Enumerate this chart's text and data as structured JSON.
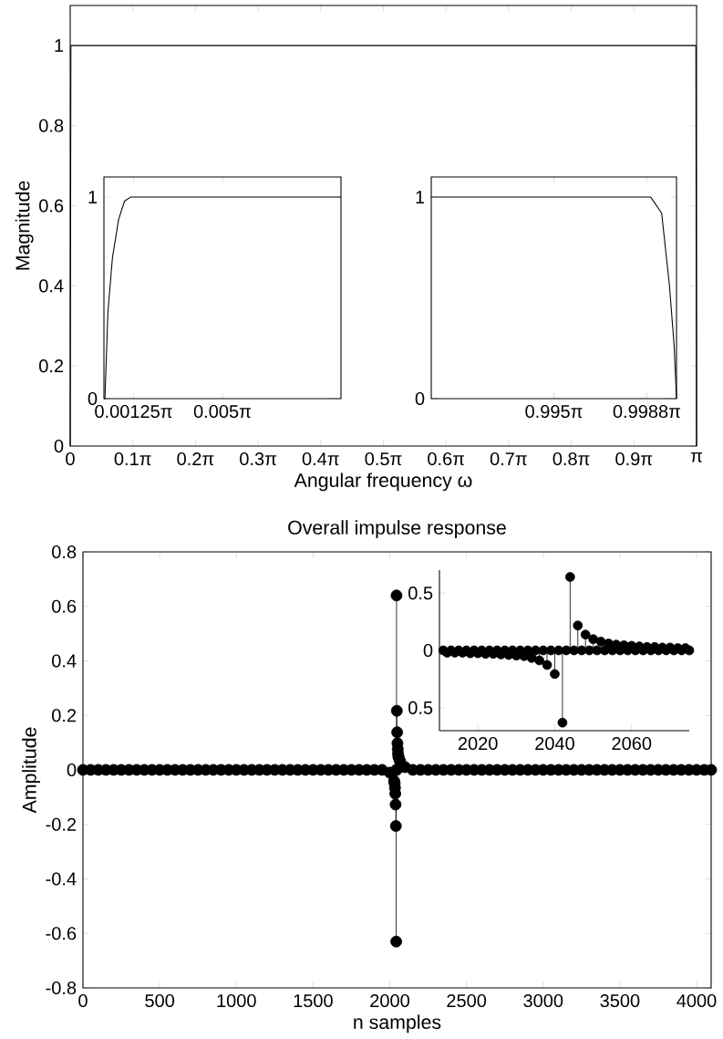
{
  "chart_data": [
    {
      "type": "line",
      "xlabel": "Angular frequency ω",
      "ylabel": "Magnitude",
      "x": [
        0,
        0.0035,
        3.1381,
        3.1416
      ],
      "series": [
        {
          "color": "#000000",
          "values": [
            0,
            1,
            1,
            0
          ]
        }
      ],
      "xlim": [
        0,
        3.1416
      ],
      "ylim": [
        0,
        1.1
      ],
      "xticks": [
        0,
        {
          "value": 0.3142,
          "label": "0.1π"
        },
        {
          "value": 0.6283,
          "label": "0.2π"
        },
        {
          "value": 0.9425,
          "label": "0.3π"
        },
        {
          "value": 1.2566,
          "label": "0.4π"
        },
        {
          "value": 1.5708,
          "label": "0.5π"
        },
        {
          "value": 1.885,
          "label": "0.6π"
        },
        {
          "value": 2.1991,
          "label": "0.7π"
        },
        {
          "value": 2.5133,
          "label": "0.8π"
        },
        {
          "value": 2.8274,
          "label": "0.9π"
        },
        {
          "value": 3.1416,
          "label": "π"
        }
      ],
      "yticks": [
        0,
        0.2,
        0.4,
        0.6,
        0.8,
        1
      ]
    },
    {
      "type": "line",
      "x": [
        0,
        0.00013,
        0.00053,
        0.00113,
        0.00195,
        0.00273,
        0.00352,
        0.03142
      ],
      "series": [
        {
          "color": "#000000",
          "values": [
            0,
            0,
            0.43,
            0.7,
            0.89,
            0.98,
            1,
            1
          ]
        }
      ],
      "xlim": [
        0,
        0.03142
      ],
      "ylim": [
        0,
        1.1
      ],
      "xticks": [
        {
          "value": 0.003927,
          "label": "0.00125π"
        },
        {
          "value": 0.015708,
          "label": "0.005π"
        }
      ],
      "yticks": [
        0,
        1
      ]
    },
    {
      "type": "line",
      "x": [
        3.1102,
        3.1383,
        3.1397,
        3.1407,
        3.1413,
        3.1416
      ],
      "series": [
        {
          "color": "#000000",
          "values": [
            1,
            1,
            0.92,
            0.56,
            0.26,
            0
          ]
        }
      ],
      "xlim": [
        3.1102,
        3.1416
      ],
      "ylim": [
        0,
        1.1
      ],
      "xticks": [
        {
          "value": 3.1259,
          "label": "0.995π"
        },
        {
          "value": 3.1378,
          "label": "0.9988π"
        }
      ],
      "yticks": [
        0,
        1
      ]
    },
    {
      "type": "lollipop",
      "title": "Overall impulse response",
      "xlabel": "n samples",
      "ylabel": "Amplitude",
      "marker": "circle",
      "x": [
        0,
        50,
        100,
        150,
        200,
        250,
        300,
        350,
        400,
        450,
        500,
        550,
        600,
        650,
        700,
        750,
        800,
        850,
        900,
        950,
        1000,
        1050,
        1100,
        1150,
        1200,
        1250,
        1300,
        1350,
        1400,
        1450,
        1500,
        1550,
        1600,
        1650,
        1700,
        1750,
        1800,
        1850,
        1900,
        1950,
        2000,
        2028,
        2030,
        2032,
        2034,
        2036,
        2038,
        2040,
        2042,
        2043,
        2044,
        2045,
        2046,
        2048,
        2050,
        2052,
        2054,
        2056,
        2058,
        2064,
        2068,
        2100,
        2150,
        2200,
        2250,
        2300,
        2350,
        2400,
        2450,
        2500,
        2550,
        2600,
        2650,
        2700,
        2750,
        2800,
        2850,
        2900,
        2950,
        3000,
        3050,
        3100,
        3150,
        3200,
        3250,
        3300,
        3350,
        3400,
        3450,
        3500,
        3550,
        3600,
        3650,
        3700,
        3750,
        3800,
        3850,
        3900,
        3950,
        4000,
        4050,
        4095
      ],
      "series": [
        {
          "color": "#000000",
          "values": [
            0,
            0,
            0,
            0,
            0,
            0,
            0,
            0,
            0,
            0,
            0,
            0,
            0,
            0,
            0,
            0,
            0,
            0,
            0,
            0,
            0,
            0,
            0,
            0,
            0,
            0,
            0,
            0,
            0,
            0,
            0,
            0,
            0,
            0,
            0,
            0,
            0,
            0,
            0,
            0,
            -0.01,
            -0.04,
            -0.045,
            -0.05,
            -0.066,
            -0.087,
            -0.127,
            -0.206,
            -0.63,
            0,
            0.64,
            0,
            0.217,
            0.138,
            0.098,
            0.077,
            0.06,
            0.05,
            0.045,
            0.035,
            0.03,
            0.01,
            0,
            0,
            0,
            0,
            0,
            0,
            0,
            0,
            0,
            0,
            0,
            0,
            0,
            0,
            0,
            0,
            0,
            0,
            0,
            0,
            0,
            0,
            0,
            0,
            0,
            0,
            0,
            0,
            0,
            0,
            0,
            0,
            0,
            0,
            0,
            0,
            0,
            0,
            0,
            0
          ]
        }
      ],
      "xlim": [
        0,
        4095
      ],
      "ylim": [
        -0.8,
        0.8
      ],
      "xticks": [
        0,
        500,
        1000,
        1500,
        2000,
        2500,
        3000,
        3500,
        4000
      ],
      "yticks": [
        -0.8,
        -0.6,
        -0.4,
        -0.2,
        0,
        0.2,
        0.4,
        0.6,
        0.8
      ]
    },
    {
      "type": "lollipop",
      "marker": "circle",
      "x": [
        2011,
        2012,
        2013,
        2014,
        2015,
        2016,
        2017,
        2018,
        2019,
        2020,
        2021,
        2022,
        2023,
        2024,
        2025,
        2026,
        2027,
        2028,
        2029,
        2030,
        2031,
        2032,
        2033,
        2034,
        2035,
        2036,
        2037,
        2038,
        2039,
        2040,
        2041,
        2042,
        2043,
        2044,
        2045,
        2046,
        2047,
        2048,
        2049,
        2050,
        2051,
        2052,
        2053,
        2054,
        2055,
        2056,
        2057,
        2058,
        2059,
        2060,
        2061,
        2062,
        2063,
        2064,
        2065,
        2066,
        2067,
        2068,
        2069,
        2070,
        2071,
        2072,
        2073,
        2074,
        2075
      ],
      "series": [
        {
          "color": "#000000",
          "values": [
            0,
            -0.02,
            0,
            -0.02,
            0,
            -0.02,
            0,
            -0.025,
            0,
            -0.025,
            0,
            -0.03,
            0,
            -0.03,
            0,
            -0.035,
            0,
            -0.04,
            0,
            -0.045,
            0,
            -0.05,
            0,
            -0.066,
            0,
            -0.087,
            0,
            -0.127,
            0,
            -0.206,
            0,
            -0.63,
            0,
            0.64,
            0,
            0.217,
            0,
            0.138,
            0,
            0.098,
            0,
            0.077,
            0,
            0.06,
            0,
            0.05,
            0,
            0.045,
            0,
            0.04,
            0,
            0.035,
            0,
            0.03,
            0,
            0.03,
            0,
            0.025,
            0,
            0.025,
            0,
            0.02,
            0,
            0.02,
            0
          ]
        }
      ],
      "xlim": [
        2010,
        2075
      ],
      "ylim": [
        -0.7,
        0.7
      ],
      "xticks": [
        2020,
        2040,
        2060
      ],
      "yticks": [
        {
          "value": -0.5,
          "label": "0.5"
        },
        0,
        0.5
      ]
    }
  ]
}
